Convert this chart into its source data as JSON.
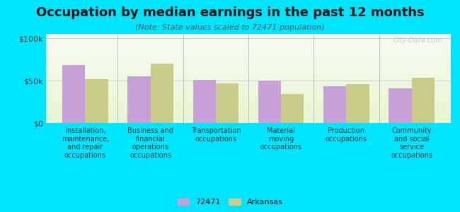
{
  "title": "Occupation by median earnings in the past 12 months",
  "subtitle": "(Note: State values scaled to 72471 population)",
  "categories": [
    "Installation,\nmaintenance,\nand repair\noccupations",
    "Business and\nfinancial\noperations\noccupations",
    "Transportation\noccupations",
    "Material\nmoving\noccupations",
    "Production\noccupations",
    "Community\nand social\nservice\noccupations"
  ],
  "values_72471": [
    68000,
    55000,
    51000,
    50000,
    43000,
    41000
  ],
  "values_arkansas": [
    52000,
    70000,
    47000,
    34000,
    46000,
    53000
  ],
  "color_72471": "#c8a0d8",
  "color_arkansas": "#c8cc88",
  "background_outer": "#00e5ff",
  "background_plot_top": "#f5faf0",
  "background_plot_bottom": "#d8efc0",
  "yticks": [
    0,
    50000,
    100000
  ],
  "ytick_labels": [
    "$0",
    "$50k",
    "$100k"
  ],
  "ylim": [
    0,
    105000
  ],
  "legend_label_72471": "72471",
  "legend_label_arkansas": "Arkansas",
  "watermark": "City-Data.com",
  "title_fontsize": 13,
  "subtitle_fontsize": 8,
  "xlabel_fontsize": 7,
  "legend_fontsize": 8
}
